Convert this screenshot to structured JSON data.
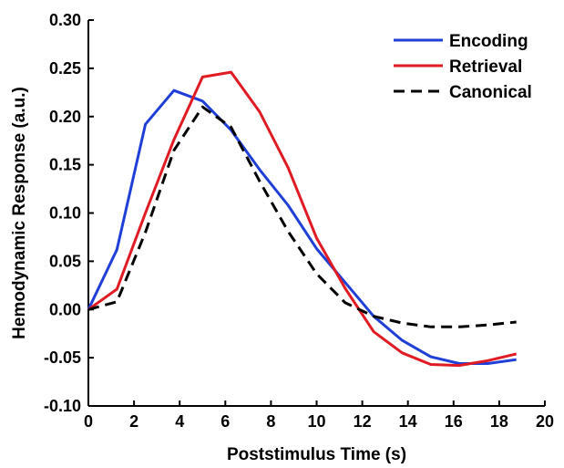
{
  "chart_data": {
    "type": "line",
    "title": "",
    "xlabel": "Poststimulus Time (s)",
    "ylabel": "Hemodynamic Response (a.u.)",
    "xlim": [
      0,
      20
    ],
    "ylim": [
      -0.1,
      0.3
    ],
    "xticks": [
      "0",
      "2",
      "4",
      "6",
      "8",
      "10",
      "12",
      "14",
      "16",
      "18",
      "20"
    ],
    "yticks": [
      "-0.10",
      "-0.05",
      "0.00",
      "0.05",
      "0.10",
      "0.15",
      "0.20",
      "0.25",
      "0.30"
    ],
    "grid": false,
    "legend_position": "top-right",
    "series": [
      {
        "name": "Encoding",
        "color": "#1f3fd6",
        "dash": "solid",
        "x": [
          0,
          1.25,
          2.5,
          3.75,
          5.0,
          6.25,
          7.5,
          8.75,
          10.0,
          11.25,
          12.5,
          13.75,
          15.0,
          16.25,
          17.5,
          18.75
        ],
        "y": [
          0.0,
          0.062,
          0.192,
          0.227,
          0.216,
          0.186,
          0.145,
          0.108,
          0.063,
          0.028,
          -0.007,
          -0.032,
          -0.049,
          -0.056,
          -0.056,
          -0.052
        ]
      },
      {
        "name": "Retrieval",
        "color": "#e01b24",
        "dash": "solid",
        "x": [
          0,
          1.25,
          2.5,
          3.75,
          5.0,
          6.25,
          7.5,
          8.75,
          10.0,
          11.25,
          12.5,
          13.75,
          15.0,
          16.25,
          17.5,
          18.75
        ],
        "y": [
          0.0,
          0.021,
          0.1,
          0.176,
          0.241,
          0.246,
          0.205,
          0.147,
          0.074,
          0.022,
          -0.023,
          -0.045,
          -0.057,
          -0.058,
          -0.053,
          -0.046
        ]
      },
      {
        "name": "Canonical",
        "color": "#000000",
        "dash": "dashed",
        "x": [
          0,
          1.25,
          2.5,
          3.75,
          5.0,
          6.25,
          7.5,
          8.75,
          10.0,
          11.25,
          12.5,
          13.75,
          15.0,
          16.25,
          17.5,
          18.75
        ],
        "y": [
          0.0,
          0.008,
          0.08,
          0.165,
          0.21,
          0.189,
          0.133,
          0.081,
          0.037,
          0.007,
          -0.007,
          -0.014,
          -0.018,
          -0.018,
          -0.016,
          -0.013
        ]
      }
    ]
  }
}
